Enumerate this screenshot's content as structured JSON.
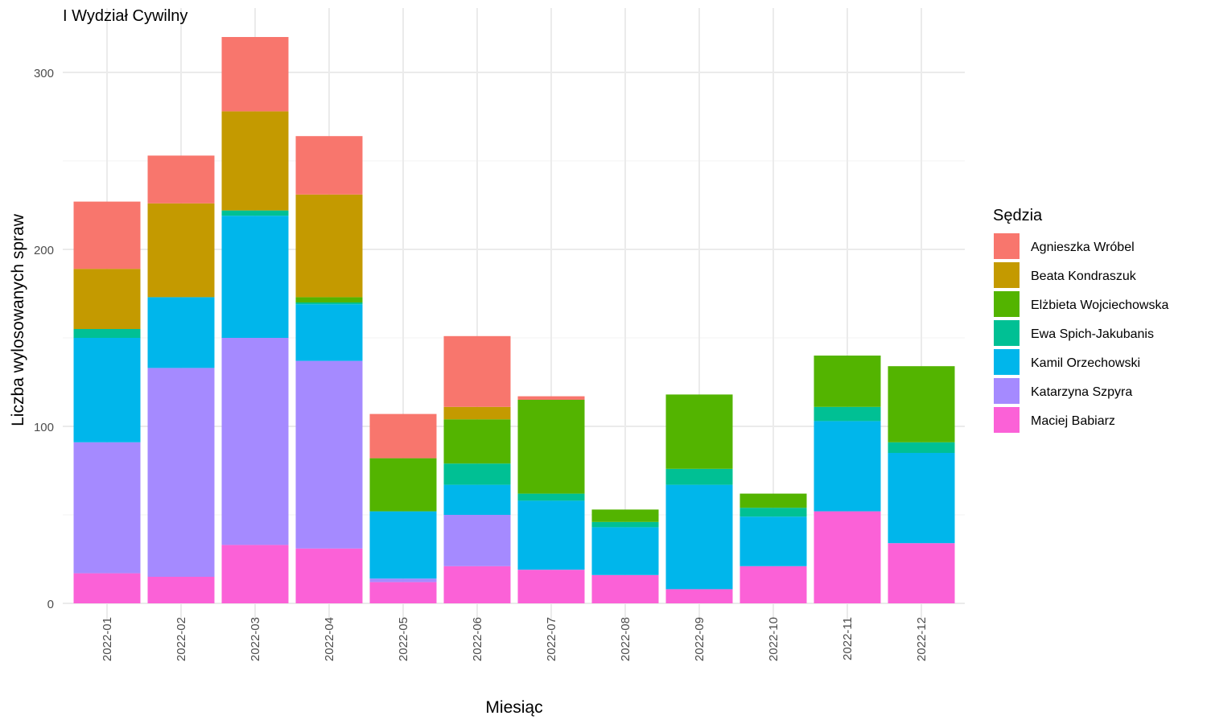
{
  "chart_data": {
    "type": "bar",
    "stacked": true,
    "title": "I Wydział Cywilny",
    "xlabel": "Miesiąc",
    "ylabel": "Liczba wylosowanych spraw",
    "ylim": [
      0,
      320
    ],
    "yticks": [
      0,
      100,
      200,
      300
    ],
    "legend_title": "Sędzia",
    "legend_position": "right",
    "grid": true,
    "categories": [
      "2022-01",
      "2022-02",
      "2022-03",
      "2022-04",
      "2022-05",
      "2022-06",
      "2022-07",
      "2022-08",
      "2022-09",
      "2022-10",
      "2022-11",
      "2022-12"
    ],
    "series": [
      {
        "name": "Maciej Babiarz",
        "color": "#FB61D7",
        "values": [
          17,
          15,
          33,
          31,
          12,
          21,
          19,
          16,
          8,
          21,
          52,
          34
        ]
      },
      {
        "name": "Katarzyna Szpyra",
        "color": "#A58AFF",
        "values": [
          74,
          118,
          117,
          106,
          2,
          29,
          0,
          0,
          0,
          0,
          0,
          0
        ]
      },
      {
        "name": "Kamil Orzechowski",
        "color": "#00B6EB",
        "values": [
          59,
          40,
          69,
          32,
          38,
          17,
          39,
          27,
          59,
          28,
          51,
          51
        ]
      },
      {
        "name": "Ewa Spich-Jakubanis",
        "color": "#00C094",
        "values": [
          5,
          0,
          3,
          1,
          0,
          12,
          4,
          3,
          9,
          5,
          8,
          6
        ]
      },
      {
        "name": "Elżbieta Wojciechowska",
        "color": "#53B400",
        "values": [
          0,
          0,
          0,
          3,
          30,
          25,
          53,
          7,
          42,
          8,
          29,
          43
        ]
      },
      {
        "name": "Beata Kondraszuk",
        "color": "#C49A00",
        "values": [
          34,
          53,
          56,
          58,
          0,
          7,
          0,
          0,
          0,
          0,
          0,
          0
        ]
      },
      {
        "name": "Agnieszka Wróbel",
        "color": "#F8766D",
        "values": [
          38,
          27,
          42,
          33,
          25,
          40,
          2,
          0,
          0,
          0,
          0,
          0
        ]
      }
    ],
    "legend_order": [
      "Agnieszka Wróbel",
      "Beata Kondraszuk",
      "Elżbieta Wojciechowska",
      "Ewa Spich-Jakubanis",
      "Kamil Orzechowski",
      "Katarzyna Szpyra",
      "Maciej Babiarz"
    ]
  }
}
